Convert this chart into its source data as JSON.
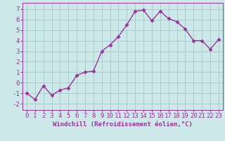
{
  "x": [
    0,
    1,
    2,
    3,
    4,
    5,
    6,
    7,
    8,
    9,
    10,
    11,
    12,
    13,
    14,
    15,
    16,
    17,
    18,
    19,
    20,
    21,
    22,
    23
  ],
  "y": [
    -1,
    -1.6,
    -0.3,
    -1.2,
    -0.7,
    -0.5,
    0.7,
    1.0,
    1.1,
    3.0,
    3.6,
    4.4,
    5.5,
    6.8,
    6.9,
    5.9,
    6.8,
    6.1,
    5.8,
    5.1,
    4.0,
    4.0,
    3.2,
    4.1
  ],
  "line_color": "#993399",
  "marker": "D",
  "markersize": 2.5,
  "linewidth": 1.0,
  "bg_color": "#cce8e8",
  "grid_color": "#aacccc",
  "xlabel": "Windchill (Refroidissement éolien,°C)",
  "xlabel_fontsize": 6.5,
  "xtick_labels": [
    "0",
    "1",
    "2",
    "3",
    "4",
    "5",
    "6",
    "7",
    "8",
    "9",
    "10",
    "11",
    "12",
    "13",
    "14",
    "15",
    "16",
    "17",
    "18",
    "19",
    "20",
    "21",
    "22",
    "23"
  ],
  "ytick_vals": [
    -2,
    -1,
    0,
    1,
    2,
    3,
    4,
    5,
    6,
    7
  ],
  "ytick_labels": [
    "-2",
    "-1",
    "0",
    "1",
    "2",
    "3",
    "4",
    "5",
    "6",
    "7"
  ],
  "ylim": [
    -2.6,
    7.6
  ],
  "xlim": [
    -0.5,
    23.5
  ],
  "tick_color": "#993399",
  "tick_fontsize": 6.5,
  "axis_color": "#993399"
}
